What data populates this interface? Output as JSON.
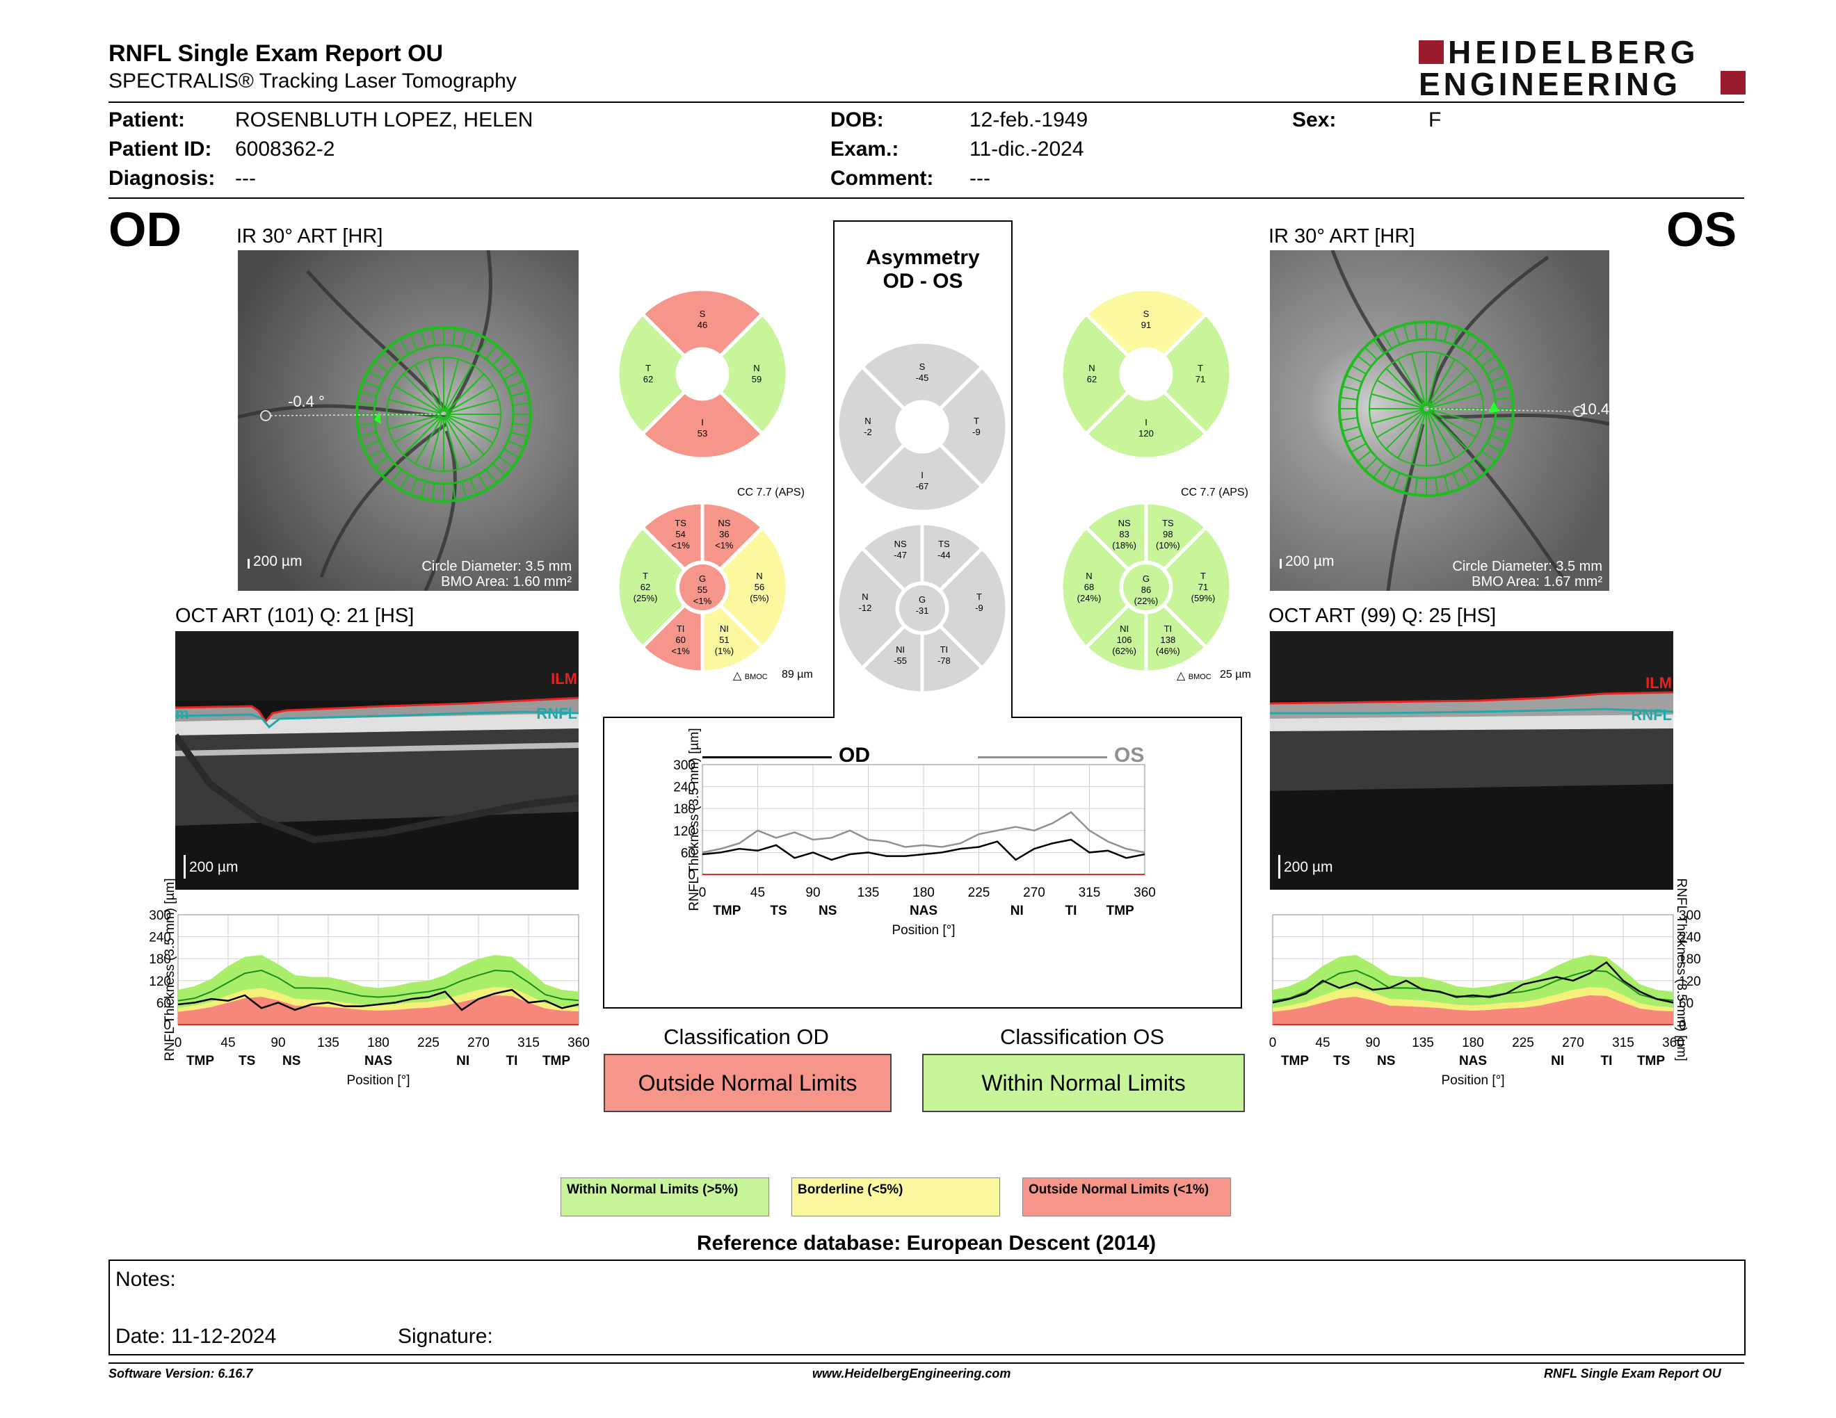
{
  "report": {
    "title": "RNFL Single Exam Report OU",
    "subtitle": "SPECTRALIS® Tracking Laser Tomography",
    "logo_line1": "HEIDELBERG",
    "logo_line2": "ENGINEERING"
  },
  "patient": {
    "patient_label": "Patient:",
    "patient_value": "ROSENBLUTH LOPEZ, HELEN",
    "id_label": "Patient ID:",
    "id_value": "6008362-2",
    "diagnosis_label": "Diagnosis:",
    "diagnosis_value": "---",
    "dob_label": "DOB:",
    "dob_value": "12-feb.-1949",
    "exam_label": "Exam.:",
    "exam_value": "11-dic.-2024",
    "comment_label": "Comment:",
    "comment_value": "---",
    "sex_label": "Sex:",
    "sex_value": "F"
  },
  "od": {
    "eye": "OD",
    "ir_title": "IR 30° ART [HR]",
    "angle": "-0.4 °",
    "scale": "200 µm",
    "circle_diameter": "Circle Diameter: 3.5 mm",
    "bmo_area": "BMO Area: 1.60 mm²",
    "oct_title": "OCT ART (101) Q: 21 [HS]",
    "oct_scale": "200 µm",
    "ilm": "ILM",
    "rnfl": "RNFL",
    "rnfl_left": "m",
    "sectors_outer": {
      "S": "46",
      "T": "62",
      "N": "59",
      "I": "53"
    },
    "cc": "CC 7.7 (APS)",
    "bmoc": "89 µm",
    "sectors_inner": {
      "TS": [
        "TS",
        "54",
        "<1%"
      ],
      "NS": [
        "NS",
        "36",
        "<1%"
      ],
      "T": [
        "T",
        "62",
        "(25%)"
      ],
      "G": [
        "G",
        "55",
        "<1%"
      ],
      "N": [
        "N",
        "56",
        "(5%)"
      ],
      "TI": [
        "TI",
        "60",
        "<1%"
      ],
      "NI": [
        "NI",
        "51",
        "(1%)"
      ]
    },
    "classification_title": "Classification OD",
    "classification": "Outside Normal Limits"
  },
  "os": {
    "eye": "OS",
    "ir_title": "IR 30° ART [HR]",
    "angle": "-10.4",
    "scale": "200 µm",
    "circle_diameter": "Circle Diameter: 3.5 mm",
    "bmo_area": "BMO Area: 1.67 mm²",
    "oct_title": "OCT ART (99) Q: 25 [HS]",
    "oct_scale": "200 µm",
    "ilm": "ILM",
    "rnfl": "RNFL",
    "sectors_outer": {
      "S": "91",
      "N": "62",
      "T": "71",
      "I": "120"
    },
    "cc": "CC 7.7 (APS)",
    "bmoc": "25 µm",
    "sectors_inner": {
      "NS": [
        "NS",
        "83",
        "(18%)"
      ],
      "TS": [
        "TS",
        "98",
        "(10%)"
      ],
      "N": [
        "N",
        "68",
        "(24%)"
      ],
      "G": [
        "G",
        "86",
        "(22%)"
      ],
      "T": [
        "T",
        "71",
        "(59%)"
      ],
      "NI": [
        "NI",
        "106",
        "(62%)"
      ],
      "TI": [
        "TI",
        "138",
        "(46%)"
      ]
    },
    "classification_title": "Classification OS",
    "classification": "Within Normal Limits"
  },
  "asymmetry": {
    "title1": "Asymmetry",
    "title2": "OD - OS",
    "outer": {
      "S": "-45",
      "N": "-2",
      "T": "-9",
      "I": "-67"
    },
    "inner": {
      "NS": [
        "NS",
        "-47"
      ],
      "TS": [
        "TS",
        "-44"
      ],
      "N": [
        "N",
        "-12"
      ],
      "G": [
        "G",
        "-31"
      ],
      "T": [
        "T",
        "-9"
      ],
      "NI": [
        "NI",
        "-55"
      ],
      "TI": [
        "TI",
        "-78"
      ]
    },
    "legend_od": "OD",
    "legend_os": "OS"
  },
  "legend": {
    "within": "Within Normal Limits (>5%)",
    "borderline": "Borderline (<5%)",
    "outside": "Outside Normal Limits (<1%)"
  },
  "reference": "Reference database: European Descent (2014)",
  "notes": {
    "notes_label": "Notes:",
    "date_label": "Date: 11-12-2024",
    "signature_label": "Signature:"
  },
  "footer": {
    "software": "Software Version: 6.16.7",
    "website": "www.HeidelbergEngineering.com",
    "report_name": "RNFL Single Exam Report OU"
  },
  "colors": {
    "green": "#c8f59a",
    "yellow": "#fbf8a0",
    "red": "#f6958a",
    "grey": "#d6d6d6",
    "od_line": "#000000",
    "os_line": "#909090"
  },
  "chart_data": [
    {
      "type": "line",
      "title": "OD",
      "ylabel": "RNFL Thickness (3.5 mm) [µm]",
      "xlabel": "Position [°]",
      "xlim": [
        0,
        360
      ],
      "ylim": [
        0,
        300
      ],
      "xticks": [
        0,
        45,
        90,
        135,
        180,
        225,
        270,
        315,
        360
      ],
      "yticks": [
        0,
        60,
        120,
        180,
        240,
        300
      ],
      "sector_labels": [
        "TMP",
        "TS",
        "NS",
        "NAS",
        "NI",
        "TI",
        "TMP"
      ],
      "sector_positions": [
        20,
        62,
        102,
        180,
        256,
        300,
        340
      ],
      "x": [
        0,
        15,
        30,
        45,
        60,
        75,
        90,
        105,
        120,
        135,
        150,
        165,
        180,
        195,
        210,
        225,
        240,
        255,
        270,
        285,
        300,
        315,
        330,
        345,
        360
      ],
      "normal_upper": [
        95,
        105,
        125,
        160,
        185,
        190,
        165,
        135,
        130,
        130,
        120,
        105,
        100,
        105,
        115,
        120,
        135,
        160,
        180,
        190,
        185,
        150,
        110,
        95,
        90
      ],
      "normal_mean": [
        65,
        72,
        90,
        115,
        140,
        148,
        128,
        100,
        100,
        98,
        88,
        78,
        75,
        78,
        85,
        90,
        100,
        120,
        135,
        148,
        145,
        115,
        82,
        70,
        66
      ],
      "borderline_lower": [
        45,
        52,
        62,
        80,
        95,
        100,
        88,
        70,
        68,
        66,
        60,
        54,
        52,
        55,
        60,
        62,
        70,
        82,
        95,
        102,
        100,
        80,
        58,
        50,
        46
      ],
      "outside_lower": [
        35,
        40,
        48,
        60,
        72,
        76,
        66,
        52,
        50,
        48,
        45,
        40,
        38,
        40,
        44,
        46,
        52,
        62,
        72,
        80,
        78,
        60,
        44,
        38,
        36
      ],
      "series": [
        {
          "name": "OD",
          "values": [
            55,
            60,
            70,
            65,
            80,
            45,
            60,
            40,
            55,
            60,
            50,
            50,
            55,
            60,
            70,
            75,
            90,
            40,
            70,
            85,
            95,
            60,
            65,
            45,
            55
          ]
        }
      ]
    },
    {
      "type": "line",
      "title": "OS",
      "ylabel": "RNFL Thickness (3.5 mm) [µm]",
      "xlabel": "Position [°]",
      "xlim": [
        0,
        360
      ],
      "ylim": [
        0,
        300
      ],
      "xticks": [
        0,
        45,
        90,
        135,
        180,
        225,
        270,
        315,
        360
      ],
      "yticks": [
        0,
        60,
        120,
        180,
        240,
        300
      ],
      "sector_labels": [
        "TMP",
        "TS",
        "NS",
        "NAS",
        "NI",
        "TI",
        "TMP"
      ],
      "sector_positions": [
        20,
        62,
        102,
        180,
        256,
        300,
        340
      ],
      "x": [
        0,
        15,
        30,
        45,
        60,
        75,
        90,
        105,
        120,
        135,
        150,
        165,
        180,
        195,
        210,
        225,
        240,
        255,
        270,
        285,
        300,
        315,
        330,
        345,
        360
      ],
      "normal_upper": [
        95,
        105,
        125,
        160,
        185,
        190,
        165,
        135,
        130,
        130,
        120,
        105,
        100,
        105,
        115,
        120,
        135,
        160,
        180,
        190,
        185,
        150,
        110,
        95,
        90
      ],
      "normal_mean": [
        65,
        72,
        90,
        115,
        140,
        148,
        128,
        100,
        100,
        98,
        88,
        78,
        75,
        78,
        85,
        90,
        100,
        120,
        135,
        148,
        145,
        115,
        82,
        70,
        66
      ],
      "borderline_lower": [
        45,
        52,
        62,
        80,
        95,
        100,
        88,
        70,
        68,
        66,
        60,
        54,
        52,
        55,
        60,
        62,
        70,
        82,
        95,
        102,
        100,
        80,
        58,
        50,
        46
      ],
      "outside_lower": [
        35,
        40,
        48,
        60,
        72,
        76,
        66,
        52,
        50,
        48,
        45,
        40,
        38,
        40,
        44,
        46,
        52,
        62,
        72,
        80,
        78,
        60,
        44,
        38,
        36
      ],
      "series": [
        {
          "name": "OS",
          "values": [
            60,
            70,
            85,
            120,
            100,
            115,
            95,
            100,
            120,
            95,
            90,
            75,
            80,
            75,
            85,
            110,
            120,
            130,
            120,
            140,
            170,
            120,
            90,
            70,
            60
          ]
        }
      ]
    },
    {
      "type": "line",
      "ylabel": "RNFL Thickness (3.5 mm) [µm]",
      "xlabel": "Position [°]",
      "xlim": [
        0,
        360
      ],
      "ylim": [
        0,
        300
      ],
      "xticks": [
        0,
        45,
        90,
        135,
        180,
        225,
        270,
        315,
        360
      ],
      "yticks": [
        0,
        60,
        120,
        180,
        240,
        300
      ],
      "sector_labels": [
        "TMP",
        "TS",
        "NS",
        "NAS",
        "NI",
        "TI",
        "TMP"
      ],
      "sector_positions": [
        20,
        62,
        102,
        180,
        256,
        300,
        340
      ],
      "x": [
        0,
        15,
        30,
        45,
        60,
        75,
        90,
        105,
        120,
        135,
        150,
        165,
        180,
        195,
        210,
        225,
        240,
        255,
        270,
        285,
        300,
        315,
        330,
        345,
        360
      ],
      "series": [
        {
          "name": "OD",
          "values": [
            55,
            60,
            70,
            65,
            80,
            45,
            60,
            40,
            55,
            60,
            50,
            50,
            55,
            60,
            70,
            75,
            90,
            40,
            70,
            85,
            95,
            60,
            65,
            45,
            55
          ]
        },
        {
          "name": "OS",
          "values": [
            60,
            70,
            85,
            120,
            100,
            115,
            95,
            100,
            120,
            95,
            90,
            75,
            80,
            75,
            85,
            110,
            120,
            130,
            120,
            140,
            170,
            120,
            90,
            70,
            60
          ]
        }
      ]
    }
  ]
}
